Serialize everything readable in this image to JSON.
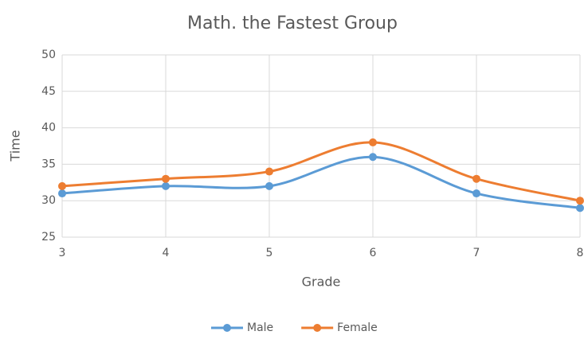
{
  "chart_data": {
    "type": "line",
    "title": "Math. the Fastest Group",
    "x_label": "Grade",
    "y_label": "Time",
    "x": [
      3,
      4,
      5,
      6,
      7,
      8
    ],
    "series": [
      {
        "name": "Male",
        "color": "#5b9bd5",
        "values": [
          31,
          32,
          32,
          36,
          31,
          29
        ]
      },
      {
        "name": "Female",
        "color": "#ed7d31",
        "values": [
          32,
          33,
          34,
          38,
          33,
          30
        ]
      }
    ],
    "xlim": [
      3,
      8
    ],
    "xticks": [
      3,
      4,
      5,
      6,
      7,
      8
    ],
    "ylim": [
      25,
      50
    ],
    "yticks": [
      25,
      30,
      35,
      40,
      45,
      50
    ],
    "grid": true,
    "smooth": true,
    "legend": "bottom"
  }
}
